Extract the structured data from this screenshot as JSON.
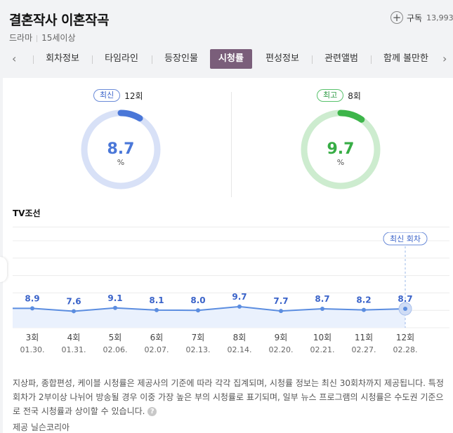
{
  "header": {
    "title": "결혼작사 이혼작곡",
    "genre": "드라마",
    "rating": "15세이상",
    "subscribe_label": "구독",
    "subscribe_count": "13,993"
  },
  "tabs": [
    {
      "label": "회차정보",
      "active": false
    },
    {
      "label": "타임라인",
      "active": false
    },
    {
      "label": "등장인물",
      "active": false
    },
    {
      "label": "시청률",
      "active": true
    },
    {
      "label": "편성정보",
      "active": false
    },
    {
      "label": "관련앨범",
      "active": false
    },
    {
      "label": "함께 볼만한",
      "active": false
    }
  ],
  "nav": {
    "prev": "‹",
    "next": "›"
  },
  "latest": {
    "badge": "최신",
    "episode": "12회",
    "value": "8.7",
    "unit": "%",
    "ratio": 0.087
  },
  "best": {
    "badge": "최고",
    "episode": "8회",
    "value": "9.7",
    "unit": "%",
    "ratio": 0.097
  },
  "channel": "TV조선",
  "chart_data": {
    "type": "area",
    "x": [
      "3회",
      "4회",
      "5회",
      "6회",
      "7회",
      "8회",
      "9회",
      "10회",
      "11회",
      "12회"
    ],
    "dates": [
      "01.30.",
      "01.31.",
      "02.06.",
      "02.07.",
      "02.13.",
      "02.14.",
      "02.20.",
      "02.21.",
      "02.27.",
      "02.28."
    ],
    "values": [
      8.9,
      7.6,
      9.1,
      8.1,
      8.0,
      9.7,
      7.7,
      8.7,
      8.2,
      8.7
    ],
    "highlight_index": 9,
    "highlight_label": "최신 회차",
    "ylim": [
      0,
      40
    ],
    "line_color": "#5b8de0",
    "fill_color": "#eaf1fd"
  },
  "notice": "지상파, 종합편성, 케이블 시청률은 제공사의 기준에 따라 각각 집계되며, 시청률 정보는 최신 30회차까지 제공됩니다. 특정 회차가 2부이상 나뉘어 방송될 경우 이중 가장 높은 부의 시청률로 표기되며, 일부 뉴스 프로그램의 시청률은 수도권 기준으로 전국 시청률과 상이할 수 있습니다.",
  "help_icon": "?",
  "provider": "제공 닐슨코리아"
}
